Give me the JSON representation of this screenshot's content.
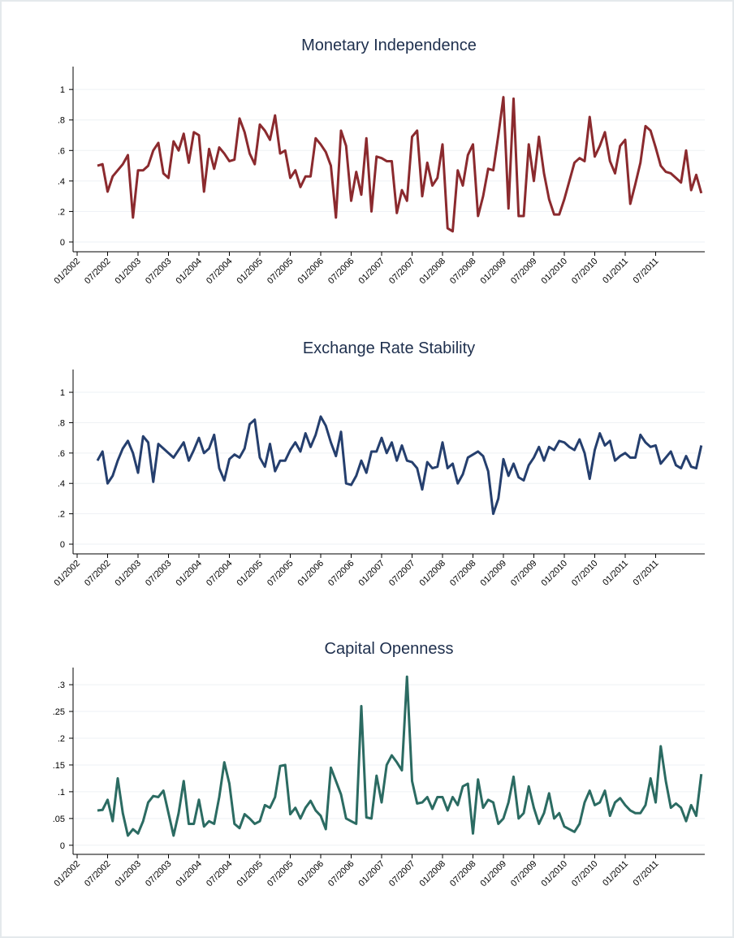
{
  "chart_data": [
    {
      "type": "line",
      "title": "Monetary Independence",
      "color": "#8b2a2e",
      "grid": true,
      "ylim": [
        -0.064,
        1.15
      ],
      "yticks": [
        0,
        {
          "value": 0.2,
          "label": ".2"
        },
        {
          "value": 0.4,
          "label": ".4"
        },
        {
          "value": 0.6,
          "label": ".6"
        },
        {
          "value": 0.8,
          "label": ".8"
        },
        1
      ],
      "xticks": [
        "01/2002",
        "07/2002",
        "01/2003",
        "07/2003",
        "01/2004",
        "07/2004",
        "01/2005",
        "07/2005",
        "01/2006",
        "07/2006",
        "01/2007",
        "07/2007",
        "01/2008",
        "07/2008",
        "01/2009",
        "07/2009",
        "01/2010",
        "07/2010",
        "01/2011",
        "07/2011"
      ],
      "x": [
        "05/2002",
        "06/2002",
        "07/2002",
        "08/2002",
        "09/2002",
        "10/2002",
        "11/2002",
        "12/2002",
        "01/2003",
        "02/2003",
        "03/2003",
        "04/2003",
        "05/2003",
        "06/2003",
        "07/2003",
        "08/2003",
        "09/2003",
        "10/2003",
        "11/2003",
        "12/2003",
        "01/2004",
        "02/2004",
        "03/2004",
        "04/2004",
        "05/2004",
        "06/2004",
        "07/2004",
        "08/2004",
        "09/2004",
        "10/2004",
        "11/2004",
        "12/2004",
        "01/2005",
        "02/2005",
        "03/2005",
        "04/2005",
        "05/2005",
        "06/2005",
        "07/2005",
        "08/2005",
        "09/2005",
        "10/2005",
        "11/2005",
        "12/2005",
        "01/2006",
        "02/2006",
        "03/2006",
        "04/2006",
        "05/2006",
        "06/2006",
        "07/2006",
        "08/2006",
        "09/2006",
        "10/2006",
        "11/2006",
        "12/2006",
        "01/2007",
        "02/2007",
        "03/2007",
        "04/2007",
        "05/2007",
        "06/2007",
        "07/2007",
        "08/2007",
        "09/2007",
        "10/2007",
        "11/2007",
        "12/2007",
        "01/2008",
        "02/2008",
        "03/2008",
        "04/2008",
        "05/2008",
        "06/2008",
        "07/2008",
        "08/2008",
        "09/2008",
        "10/2008",
        "11/2008",
        "12/2008",
        "01/2009",
        "02/2009",
        "03/2009",
        "04/2009",
        "05/2009",
        "06/2009",
        "07/2009",
        "08/2009",
        "09/2009",
        "10/2009",
        "11/2009",
        "12/2009",
        "01/2010",
        "02/2010",
        "03/2010",
        "04/2010",
        "05/2010",
        "06/2010",
        "07/2010",
        "08/2010",
        "09/2010",
        "10/2010",
        "11/2010",
        "12/2010",
        "01/2011",
        "02/2011",
        "03/2011",
        "04/2011",
        "05/2011",
        "06/2011",
        "07/2011",
        "08/2011",
        "09/2011",
        "10/2011",
        "11/2011",
        "12/2011",
        "01/2012",
        "02/2012",
        "03/2012",
        "04/2012"
      ],
      "values": [
        0.5,
        0.51,
        0.33,
        0.43,
        0.47,
        0.51,
        0.57,
        0.16,
        0.47,
        0.47,
        0.5,
        0.6,
        0.65,
        0.45,
        0.42,
        0.66,
        0.6,
        0.71,
        0.52,
        0.72,
        0.7,
        0.33,
        0.61,
        0.48,
        0.62,
        0.58,
        0.53,
        0.54,
        0.81,
        0.72,
        0.58,
        0.51,
        0.77,
        0.73,
        0.67,
        0.83,
        0.58,
        0.6,
        0.42,
        0.47,
        0.36,
        0.43,
        0.43,
        0.68,
        0.64,
        0.59,
        0.5,
        0.16,
        0.73,
        0.63,
        0.27,
        0.46,
        0.31,
        0.68,
        0.2,
        0.56,
        0.55,
        0.53,
        0.53,
        0.19,
        0.34,
        0.27,
        0.69,
        0.73,
        0.3,
        0.52,
        0.37,
        0.42,
        0.64,
        0.09,
        0.07,
        0.47,
        0.37,
        0.57,
        0.64,
        0.17,
        0.3,
        0.48,
        0.47,
        0.7,
        0.95,
        0.22,
        0.94,
        0.17,
        0.17,
        0.64,
        0.4,
        0.69,
        0.45,
        0.28,
        0.18,
        0.18,
        0.28,
        0.4,
        0.52,
        0.55,
        0.53,
        0.82,
        0.56,
        0.63,
        0.72,
        0.53,
        0.45,
        0.63,
        0.67,
        0.25,
        0.38,
        0.52,
        0.76,
        0.73,
        0.62,
        0.5,
        0.46,
        0.45,
        0.42,
        0.39,
        0.6,
        0.34,
        0.44,
        0.32
      ]
    },
    {
      "type": "line",
      "title": "Exchange Rate Stability",
      "color": "#253f6e",
      "grid": true,
      "ylim": [
        -0.064,
        1.15
      ],
      "yticks": [
        0,
        {
          "value": 0.2,
          "label": ".2"
        },
        {
          "value": 0.4,
          "label": ".4"
        },
        {
          "value": 0.6,
          "label": ".6"
        },
        {
          "value": 0.8,
          "label": ".8"
        },
        1
      ],
      "xticks": [
        "01/2002",
        "07/2002",
        "01/2003",
        "07/2003",
        "01/2004",
        "07/2004",
        "01/2005",
        "07/2005",
        "01/2006",
        "07/2006",
        "01/2007",
        "07/2007",
        "01/2008",
        "07/2008",
        "01/2009",
        "07/2009",
        "01/2010",
        "07/2010",
        "01/2011",
        "07/2011"
      ],
      "x": [
        "05/2002",
        "06/2002",
        "07/2002",
        "08/2002",
        "09/2002",
        "10/2002",
        "11/2002",
        "12/2002",
        "01/2003",
        "02/2003",
        "03/2003",
        "04/2003",
        "05/2003",
        "06/2003",
        "07/2003",
        "08/2003",
        "09/2003",
        "10/2003",
        "11/2003",
        "12/2003",
        "01/2004",
        "02/2004",
        "03/2004",
        "04/2004",
        "05/2004",
        "06/2004",
        "07/2004",
        "08/2004",
        "09/2004",
        "10/2004",
        "11/2004",
        "12/2004",
        "01/2005",
        "02/2005",
        "03/2005",
        "04/2005",
        "05/2005",
        "06/2005",
        "07/2005",
        "08/2005",
        "09/2005",
        "10/2005",
        "11/2005",
        "12/2005",
        "01/2006",
        "02/2006",
        "03/2006",
        "04/2006",
        "05/2006",
        "06/2006",
        "07/2006",
        "08/2006",
        "09/2006",
        "10/2006",
        "11/2006",
        "12/2006",
        "01/2007",
        "02/2007",
        "03/2007",
        "04/2007",
        "05/2007",
        "06/2007",
        "07/2007",
        "08/2007",
        "09/2007",
        "10/2007",
        "11/2007",
        "12/2007",
        "01/2008",
        "02/2008",
        "03/2008",
        "04/2008",
        "05/2008",
        "06/2008",
        "07/2008",
        "08/2008",
        "09/2008",
        "10/2008",
        "11/2008",
        "12/2008",
        "01/2009",
        "02/2009",
        "03/2009",
        "04/2009",
        "05/2009",
        "06/2009",
        "07/2009",
        "08/2009",
        "09/2009",
        "10/2009",
        "11/2009",
        "12/2009",
        "01/2010",
        "02/2010",
        "03/2010",
        "04/2010",
        "05/2010",
        "06/2010",
        "07/2010",
        "08/2010",
        "09/2010",
        "10/2010",
        "11/2010",
        "12/2010",
        "01/2011",
        "02/2011",
        "03/2011",
        "04/2011",
        "05/2011",
        "06/2011",
        "07/2011",
        "08/2011",
        "09/2011",
        "10/2011",
        "11/2011",
        "12/2011",
        "01/2012",
        "02/2012",
        "03/2012",
        "04/2012"
      ],
      "values": [
        0.55,
        0.61,
        0.4,
        0.45,
        0.55,
        0.63,
        0.68,
        0.6,
        0.47,
        0.71,
        0.67,
        0.41,
        0.66,
        0.63,
        0.6,
        0.57,
        0.62,
        0.67,
        0.55,
        0.62,
        0.7,
        0.6,
        0.63,
        0.72,
        0.5,
        0.42,
        0.56,
        0.59,
        0.57,
        0.63,
        0.79,
        0.82,
        0.57,
        0.51,
        0.66,
        0.48,
        0.55,
        0.55,
        0.62,
        0.67,
        0.61,
        0.73,
        0.64,
        0.72,
        0.84,
        0.78,
        0.67,
        0.58,
        0.74,
        0.4,
        0.39,
        0.45,
        0.55,
        0.47,
        0.61,
        0.61,
        0.7,
        0.6,
        0.67,
        0.55,
        0.65,
        0.55,
        0.54,
        0.5,
        0.36,
        0.54,
        0.5,
        0.51,
        0.67,
        0.5,
        0.53,
        0.4,
        0.46,
        0.57,
        0.59,
        0.61,
        0.58,
        0.48,
        0.2,
        0.3,
        0.56,
        0.45,
        0.53,
        0.44,
        0.42,
        0.52,
        0.57,
        0.64,
        0.55,
        0.64,
        0.62,
        0.68,
        0.67,
        0.64,
        0.62,
        0.69,
        0.6,
        0.43,
        0.62,
        0.73,
        0.65,
        0.68,
        0.55,
        0.58,
        0.6,
        0.57,
        0.57,
        0.72,
        0.67,
        0.64,
        0.65,
        0.53,
        0.57,
        0.61,
        0.52,
        0.5,
        0.58,
        0.51,
        0.5,
        0.65
      ]
    },
    {
      "type": "line",
      "title": "Capital Openness",
      "color": "#2b6b62",
      "grid": true,
      "ylim": [
        -0.017,
        0.332
      ],
      "yticks": [
        0,
        {
          "value": 0.05,
          "label": ".05"
        },
        {
          "value": 0.1,
          "label": ".1"
        },
        {
          "value": 0.15,
          "label": ".15"
        },
        {
          "value": 0.2,
          "label": ".2"
        },
        {
          "value": 0.25,
          "label": ".25"
        },
        {
          "value": 0.3,
          "label": ".3"
        }
      ],
      "xticks": [
        "01/2002",
        "07/2002",
        "01/2003",
        "07/2003",
        "01/2004",
        "07/2004",
        "01/2005",
        "07/2005",
        "01/2006",
        "07/2006",
        "01/2007",
        "07/2007",
        "01/2008",
        "07/2008",
        "01/2009",
        "07/2009",
        "01/2010",
        "07/2010",
        "01/2011",
        "07/2011"
      ],
      "x": [
        "05/2002",
        "06/2002",
        "07/2002",
        "08/2002",
        "09/2002",
        "10/2002",
        "11/2002",
        "12/2002",
        "01/2003",
        "02/2003",
        "03/2003",
        "04/2003",
        "05/2003",
        "06/2003",
        "07/2003",
        "08/2003",
        "09/2003",
        "10/2003",
        "11/2003",
        "12/2003",
        "01/2004",
        "02/2004",
        "03/2004",
        "04/2004",
        "05/2004",
        "06/2004",
        "07/2004",
        "08/2004",
        "09/2004",
        "10/2004",
        "11/2004",
        "12/2004",
        "01/2005",
        "02/2005",
        "03/2005",
        "04/2005",
        "05/2005",
        "06/2005",
        "07/2005",
        "08/2005",
        "09/2005",
        "10/2005",
        "11/2005",
        "12/2005",
        "01/2006",
        "02/2006",
        "03/2006",
        "04/2006",
        "05/2006",
        "06/2006",
        "07/2006",
        "08/2006",
        "09/2006",
        "10/2006",
        "11/2006",
        "12/2006",
        "01/2007",
        "02/2007",
        "03/2007",
        "04/2007",
        "05/2007",
        "06/2007",
        "07/2007",
        "08/2007",
        "09/2007",
        "10/2007",
        "11/2007",
        "12/2007",
        "01/2008",
        "02/2008",
        "03/2008",
        "04/2008",
        "05/2008",
        "06/2008",
        "07/2008",
        "08/2008",
        "09/2008",
        "10/2008",
        "11/2008",
        "12/2008",
        "01/2009",
        "02/2009",
        "03/2009",
        "04/2009",
        "05/2009",
        "06/2009",
        "07/2009",
        "08/2009",
        "09/2009",
        "10/2009",
        "11/2009",
        "12/2009",
        "01/2010",
        "02/2010",
        "03/2010",
        "04/2010",
        "05/2010",
        "06/2010",
        "07/2010",
        "08/2010",
        "09/2010",
        "10/2010",
        "11/2010",
        "12/2010",
        "01/2011",
        "02/2011",
        "03/2011",
        "04/2011",
        "05/2011",
        "06/2011",
        "07/2011",
        "08/2011",
        "09/2011",
        "10/2011",
        "11/2011",
        "12/2011",
        "01/2012",
        "02/2012",
        "03/2012",
        "04/2012"
      ],
      "values": [
        0.065,
        0.066,
        0.085,
        0.045,
        0.125,
        0.06,
        0.018,
        0.03,
        0.022,
        0.045,
        0.08,
        0.092,
        0.09,
        0.102,
        0.06,
        0.018,
        0.06,
        0.12,
        0.04,
        0.04,
        0.085,
        0.035,
        0.045,
        0.04,
        0.09,
        0.155,
        0.115,
        0.04,
        0.032,
        0.058,
        0.05,
        0.04,
        0.045,
        0.075,
        0.07,
        0.09,
        0.148,
        0.15,
        0.058,
        0.07,
        0.05,
        0.07,
        0.083,
        0.065,
        0.055,
        0.03,
        0.145,
        0.12,
        0.095,
        0.05,
        0.045,
        0.04,
        0.26,
        0.052,
        0.05,
        0.13,
        0.08,
        0.15,
        0.168,
        0.155,
        0.14,
        0.315,
        0.12,
        0.078,
        0.08,
        0.09,
        0.068,
        0.09,
        0.09,
        0.065,
        0.09,
        0.075,
        0.11,
        0.115,
        0.022,
        0.123,
        0.07,
        0.085,
        0.08,
        0.04,
        0.05,
        0.08,
        0.128,
        0.05,
        0.06,
        0.11,
        0.07,
        0.04,
        0.06,
        0.097,
        0.05,
        0.06,
        0.035,
        0.03,
        0.025,
        0.04,
        0.08,
        0.102,
        0.075,
        0.08,
        0.102,
        0.055,
        0.08,
        0.088,
        0.075,
        0.065,
        0.06,
        0.06,
        0.075,
        0.125,
        0.08,
        0.185,
        0.12,
        0.07,
        0.078,
        0.07,
        0.045,
        0.075,
        0.055,
        0.133
      ]
    }
  ]
}
